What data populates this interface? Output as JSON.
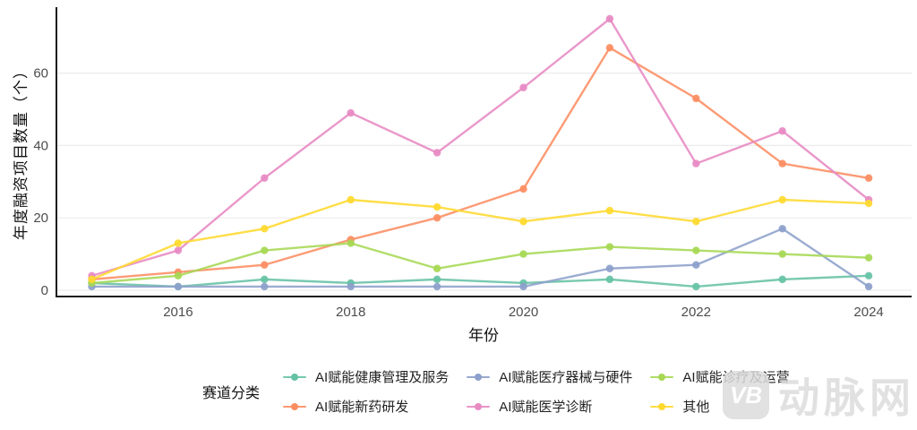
{
  "chart_data": {
    "type": "line",
    "title": "",
    "xlabel": "年份",
    "ylabel": "年度融资项目数量（个）",
    "x": [
      2015,
      2016,
      2017,
      2018,
      2019,
      2020,
      2021,
      2022,
      2023,
      2024
    ],
    "x_tick_labels": [
      "2016",
      "2018",
      "2020",
      "2022",
      "2024"
    ],
    "y_ticks": [
      0,
      20,
      40,
      60
    ],
    "y_tick_labels": [
      "0",
      "20",
      "40",
      "60"
    ],
    "ylim": [
      0,
      78
    ],
    "grid": "horizontal-major-only",
    "legend_position": "bottom",
    "legend_title": "赛道分类",
    "series": [
      {
        "name": "AI赋能健康管理及服务",
        "color": "#66C2A5",
        "values": [
          2,
          1,
          3,
          2,
          3,
          2,
          3,
          1,
          3,
          4
        ]
      },
      {
        "name": "AI赋能新药研发",
        "color": "#FC8D62",
        "values": [
          3,
          5,
          7,
          14,
          20,
          28,
          67,
          53,
          35,
          31
        ]
      },
      {
        "name": "AI赋能医疗器械与硬件",
        "color": "#8DA0CB",
        "values": [
          1,
          1,
          1,
          1,
          1,
          1,
          6,
          7,
          17,
          1
        ]
      },
      {
        "name": "AI赋能医学诊断",
        "color": "#E78AC3",
        "values": [
          4,
          11,
          31,
          49,
          38,
          56,
          75,
          35,
          44,
          25
        ]
      },
      {
        "name": "AI赋能诊疗及运营",
        "color": "#A6D854",
        "values": [
          2,
          4,
          11,
          13,
          6,
          10,
          12,
          11,
          10,
          9
        ]
      },
      {
        "name": "其他",
        "color": "#FFD92F",
        "values": [
          3,
          13,
          17,
          25,
          23,
          19,
          22,
          19,
          25,
          24
        ]
      }
    ]
  },
  "axis_style": {
    "axis_line_color": "#1a1a1a",
    "tick_label_color": "#4d4d4d",
    "grid_color": "#ececec"
  },
  "watermark": {
    "logo_text": "VB",
    "brand_text": "动脉网",
    "color": "#dcdcdc"
  }
}
